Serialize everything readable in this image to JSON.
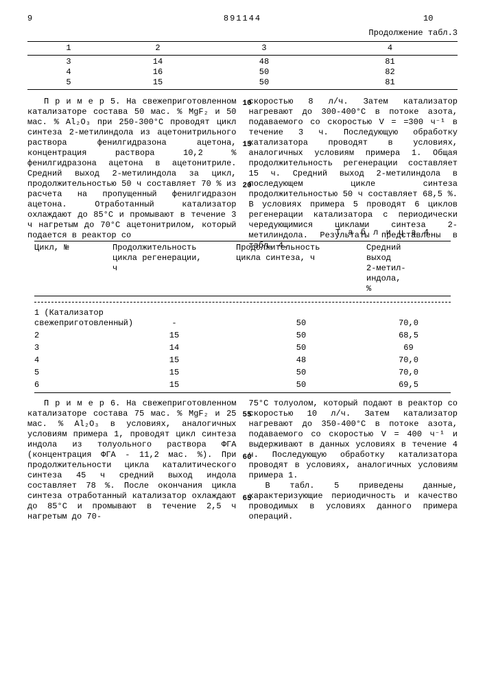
{
  "header": {
    "left_page": "9",
    "doc_number": "891144",
    "right_page": "10"
  },
  "table3": {
    "cont_label": "Продолжение табл.3",
    "headers": [
      "1",
      "2",
      "3",
      "4"
    ],
    "rows": [
      [
        "3",
        "14",
        "48",
        "81"
      ],
      [
        "4",
        "16",
        "50",
        "82"
      ],
      [
        "5",
        "15",
        "50",
        "81"
      ]
    ]
  },
  "para1": {
    "left": "П р и м е р  5.  На свежеприготовленном катализаторе состава 50 мас. % MgF₂ и 50 мас. % Al₂O₃ при 250-300°С проводят цикл синтеза 2-метилиндола из ацетонитрильного раствора фенилгидразона ацетона, концентрация раствора 10,2 % фенилгидразона ацетона в ацетонитриле. Средний выход 2-метилиндола за цикл, продолжительностью 50 ч составляет 70 % из расчета на пропущенный фенилгидразон ацетона. Отработанный катализатор охлаждают до 85°С и промывают в течение 3 ч нагретым до 70°С ацетонитрилом, который подается в реактор со",
    "right": "скоростью 8 л/ч. Затем катализатор нагревают до 300-400°С в потоке азота, подаваемого со скоростью V = =300 ч⁻¹ в течение 3 ч. Последующую обработку катализатора проводят в условиях, аналогичных условиям примера 1. Общая продолжительность регенерации составляет 15 ч. Средний выход 2-метилиндола в последующем цикле синтеза продолжительностью 50 ч составляет 68,5 %. В условиях примера 5 проводят 6 циклов регенерации катализатора с периодически чередующимися циклами синтеза 2-метилиндола. Результаты представлены в табл. 4."
  },
  "line_marks1": {
    "10": 4,
    "15": 64,
    "20": 124
  },
  "table4": {
    "title": "Т а б л и ц а  4",
    "headers": [
      "Цикл, №",
      "Продолжительность\nцикла регенерации,\nч",
      "Продолжительность\nцикла синтеза, ч",
      "Средний\nвыход\n2-метил-\nиндола,\n%"
    ],
    "rows": [
      [
        "1 (Катализатор свежеприготовленный)",
        "-",
        "50",
        "70,0"
      ],
      [
        "2",
        "15",
        "50",
        "68,5"
      ],
      [
        "3",
        "14",
        "50",
        "69"
      ],
      [
        "4",
        "15",
        "48",
        "70,0"
      ],
      [
        "5",
        "15",
        "50",
        "70,0"
      ],
      [
        "6",
        "15",
        "50",
        "69,5"
      ]
    ]
  },
  "para2": {
    "left": "П р и м е р  6.  На свежеприготовленном катализаторе состава 75 мас. % MgF₂ и 25 мас. % Al₂O₃ в условиях, аналогичных условиям примера 1, проводят цикл синтеза индола из толуольного раствора ФГА (концентрация ФГА - 11,2 мас. %). При продолжительности цикла каталитического синтеза 45 ч средний выход индола составляет 78 %. После окончания цикла синтеза отработанный катализатор охлаждают до 85°С и промывают в течение 2,5 ч нагретым до 70-",
    "right_a": "75°С толуолом, который подают в реактор со скоростью 10 л/ч. Затем катализатор нагревают до 350-400°С в потоке азота, подаваемого со скоростью V = 400 ч⁻¹ и выдерживают в данных условиях в течение 4 ч. Последующую обработку катализатора проводят в условиях, аналогичных условиям примера 1.",
    "right_b": "В табл. 5 приведены данные, характеризующие периодичность и качество проводимых в условиях данного примера операций."
  },
  "line_marks2": {
    "55": 18,
    "60": 80,
    "65": 140
  }
}
